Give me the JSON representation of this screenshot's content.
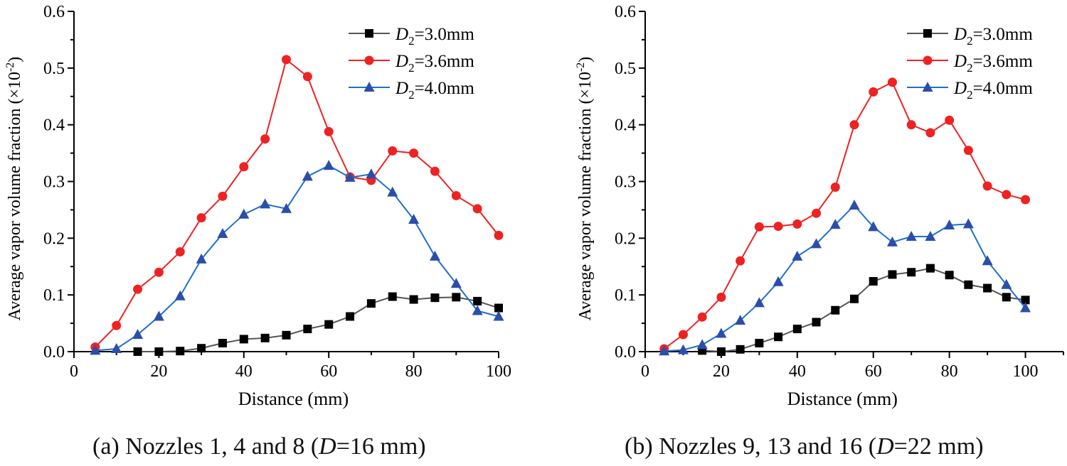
{
  "chart_data": [
    {
      "type": "line",
      "title": "",
      "caption": {
        "pre": "(a) Nozzles 1, 4 and 8 (",
        "var": "D",
        "post": "=16 mm)"
      },
      "xlabel": "Distance (mm)",
      "ylabel": "Average vapor volume fraction (×10",
      "ylabel_exp": "-2",
      "ylabel_close": ")",
      "xlim": [
        0,
        100
      ],
      "ylim": [
        0,
        0.6
      ],
      "xticks": [
        "0",
        "20",
        "40",
        "60",
        "80",
        "100"
      ],
      "yticks": [
        "0.0",
        "0.1",
        "0.2",
        "0.3",
        "0.4",
        "0.5",
        "0.6"
      ],
      "legend_position": "top-right",
      "grid": false,
      "series": [
        {
          "name_var": "D",
          "name_sub": "2",
          "name_post": "=3.0mm",
          "color": "#000000",
          "line_color": "#555555",
          "marker": "square",
          "x": [
            15,
            20,
            25,
            30,
            35,
            40,
            45,
            50,
            55,
            60,
            65,
            70,
            75,
            80,
            85,
            90,
            95,
            100
          ],
          "y": [
            0.0,
            0.0,
            0.001,
            0.006,
            0.015,
            0.022,
            0.024,
            0.029,
            0.04,
            0.048,
            0.062,
            0.085,
            0.097,
            0.092,
            0.095,
            0.096,
            0.089,
            0.077
          ]
        },
        {
          "name_var": "D",
          "name_sub": "2",
          "name_post": "=3.6mm",
          "color": "#ee2222",
          "line_color": "#ee2222",
          "marker": "circle",
          "x": [
            5,
            10,
            15,
            20,
            25,
            30,
            35,
            40,
            45,
            50,
            55,
            60,
            65,
            70,
            75,
            80,
            85,
            90,
            95,
            100
          ],
          "y": [
            0.008,
            0.046,
            0.11,
            0.14,
            0.176,
            0.236,
            0.274,
            0.326,
            0.375,
            0.515,
            0.485,
            0.388,
            0.308,
            0.302,
            0.354,
            0.35,
            0.318,
            0.275,
            0.252,
            0.205
          ]
        },
        {
          "name_var": "D",
          "name_sub": "2",
          "name_post": "=4.0mm",
          "color": "#2b4ea8",
          "line_color": "#1f6fd0",
          "marker": "triangle",
          "x": [
            5,
            10,
            15,
            20,
            25,
            30,
            35,
            40,
            45,
            50,
            55,
            60,
            65,
            70,
            75,
            80,
            85,
            90,
            95,
            100
          ],
          "y": [
            0.002,
            0.005,
            0.03,
            0.062,
            0.098,
            0.163,
            0.208,
            0.242,
            0.26,
            0.252,
            0.309,
            0.328,
            0.307,
            0.313,
            0.281,
            0.233,
            0.168,
            0.12,
            0.072,
            0.062
          ]
        }
      ]
    },
    {
      "type": "line",
      "title": "",
      "caption": {
        "pre": "(b) Nozzles 9, 13 and 16 (",
        "var": "D",
        "post": "=22 mm)"
      },
      "xlabel": "Distance (mm)",
      "ylabel": "Average vapor volume fraction (×10",
      "ylabel_exp": "-2",
      "ylabel_close": ")",
      "xlim": [
        0,
        110
      ],
      "ylim": [
        0,
        0.6
      ],
      "xticks": [
        "0",
        "20",
        "40",
        "60",
        "80",
        "100"
      ],
      "yticks": [
        "0.0",
        "0.1",
        "0.2",
        "0.3",
        "0.4",
        "0.5",
        "0.6"
      ],
      "legend_position": "top-right",
      "grid": false,
      "series": [
        {
          "name_var": "D",
          "name_sub": "2",
          "name_post": "=3.0mm",
          "color": "#000000",
          "line_color": "#555555",
          "marker": "square",
          "x": [
            15,
            20,
            25,
            30,
            35,
            40,
            45,
            50,
            55,
            60,
            65,
            70,
            75,
            80,
            85,
            90,
            95,
            100
          ],
          "y": [
            0.002,
            0.0,
            0.004,
            0.015,
            0.026,
            0.04,
            0.052,
            0.073,
            0.093,
            0.124,
            0.136,
            0.14,
            0.147,
            0.135,
            0.118,
            0.112,
            0.096,
            0.091
          ]
        },
        {
          "name_var": "D",
          "name_sub": "2",
          "name_post": "=3.6mm",
          "color": "#ee2222",
          "line_color": "#ee2222",
          "marker": "circle",
          "x": [
            5,
            10,
            15,
            20,
            25,
            30,
            35,
            40,
            45,
            50,
            55,
            60,
            65,
            70,
            75,
            80,
            85,
            90,
            95,
            100
          ],
          "y": [
            0.005,
            0.03,
            0.061,
            0.096,
            0.16,
            0.22,
            0.221,
            0.225,
            0.244,
            0.29,
            0.4,
            0.458,
            0.475,
            0.4,
            0.386,
            0.408,
            0.355,
            0.292,
            0.277,
            0.268
          ]
        },
        {
          "name_var": "D",
          "name_sub": "2",
          "name_post": "=4.0mm",
          "color": "#2b4ea8",
          "line_color": "#1f6fd0",
          "marker": "triangle",
          "x": [
            5,
            10,
            15,
            20,
            25,
            30,
            35,
            40,
            45,
            50,
            55,
            60,
            65,
            70,
            75,
            80,
            85,
            90,
            95,
            100
          ],
          "y": [
            0.001,
            0.003,
            0.012,
            0.032,
            0.055,
            0.086,
            0.123,
            0.168,
            0.19,
            0.224,
            0.258,
            0.22,
            0.193,
            0.203,
            0.203,
            0.223,
            0.225,
            0.16,
            0.118,
            0.077
          ]
        }
      ]
    }
  ]
}
